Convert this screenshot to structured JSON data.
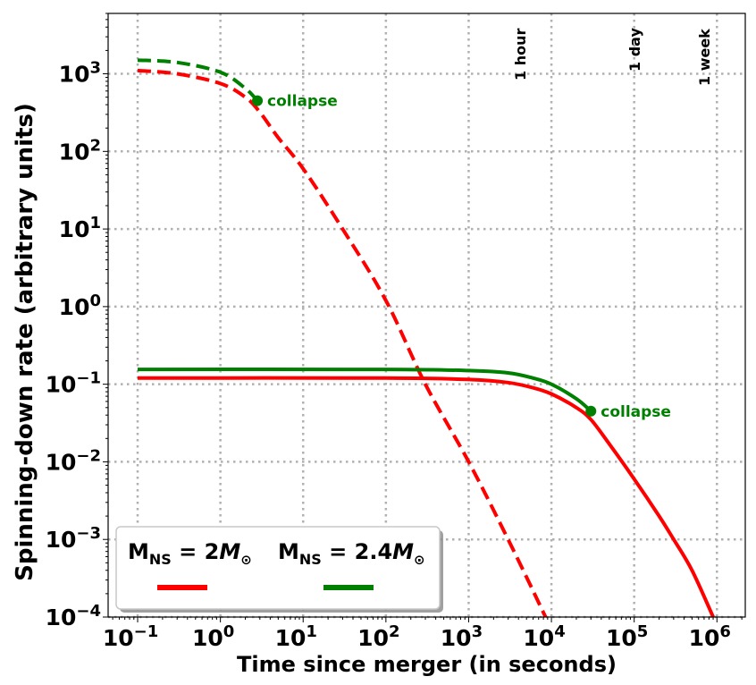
{
  "chart_data": {
    "type": "line",
    "xlabel": "Time since merger (in seconds)",
    "ylabel": "Spinning-down rate (arbitrary units)",
    "xscale": "log",
    "yscale": "log",
    "xlim": [
      0.044,
      2200000
    ],
    "ylim": [
      0.0001,
      6000
    ],
    "grid": true,
    "x_ticks": [
      {
        "value": 0.1,
        "base": "10",
        "exp": "−1"
      },
      {
        "value": 1,
        "base": "10",
        "exp": "0"
      },
      {
        "value": 10,
        "base": "10",
        "exp": "1"
      },
      {
        "value": 100,
        "base": "10",
        "exp": "2"
      },
      {
        "value": 1000,
        "base": "10",
        "exp": "3"
      },
      {
        "value": 10000,
        "base": "10",
        "exp": "4"
      },
      {
        "value": 100000,
        "base": "10",
        "exp": "5"
      },
      {
        "value": 1000000,
        "base": "10",
        "exp": "6"
      }
    ],
    "y_ticks": [
      {
        "value": 0.0001,
        "base": "10",
        "exp": "−4"
      },
      {
        "value": 0.001,
        "base": "10",
        "exp": "−3"
      },
      {
        "value": 0.01,
        "base": "10",
        "exp": "−2"
      },
      {
        "value": 0.1,
        "base": "10",
        "exp": "−1"
      },
      {
        "value": 1,
        "base": "10",
        "exp": "0"
      },
      {
        "value": 10,
        "base": "10",
        "exp": "1"
      },
      {
        "value": 100,
        "base": "10",
        "exp": "2"
      },
      {
        "value": 1000,
        "base": "10",
        "exp": "3"
      }
    ],
    "time_markers": [
      {
        "x": 3600,
        "label": "1 hour"
      },
      {
        "x": 86400,
        "label": "1 day"
      },
      {
        "x": 604800,
        "label": "1 week"
      }
    ],
    "series": [
      {
        "color": "#ff0000",
        "dash": true,
        "points": [
          [
            0.1,
            1100
          ],
          [
            0.3,
            1000
          ],
          [
            1,
            750
          ],
          [
            2,
            500
          ],
          [
            3,
            320
          ],
          [
            5,
            150
          ],
          [
            10,
            60
          ],
          [
            30,
            10
          ],
          [
            100,
            1.2
          ],
          [
            300,
            0.1
          ],
          [
            1000,
            0.01
          ],
          [
            3000,
            0.001
          ],
          [
            8500,
            0.0001
          ]
        ]
      },
      {
        "color": "#008000",
        "dash": true,
        "collapse": true,
        "points": [
          [
            0.1,
            1500
          ],
          [
            0.3,
            1400
          ],
          [
            1,
            1050
          ],
          [
            2,
            650
          ],
          [
            2.8,
            450
          ]
        ]
      },
      {
        "color": "#ff0000",
        "dash": false,
        "points": [
          [
            0.1,
            0.12
          ],
          [
            100,
            0.12
          ],
          [
            1000,
            0.115
          ],
          [
            3000,
            0.105
          ],
          [
            6000,
            0.09
          ],
          [
            10000,
            0.075
          ],
          [
            20000,
            0.05
          ],
          [
            30000,
            0.035
          ],
          [
            50000,
            0.017
          ],
          [
            100000,
            0.006
          ],
          [
            200000,
            0.002
          ],
          [
            300000,
            0.001
          ],
          [
            500000,
            0.0004
          ],
          [
            900000,
            0.0001
          ]
        ]
      },
      {
        "color": "#008000",
        "dash": false,
        "collapse": true,
        "points": [
          [
            0.1,
            0.155
          ],
          [
            100,
            0.155
          ],
          [
            1000,
            0.15
          ],
          [
            3000,
            0.14
          ],
          [
            6000,
            0.12
          ],
          [
            10000,
            0.1
          ],
          [
            20000,
            0.065
          ],
          [
            30000,
            0.045
          ]
        ]
      }
    ],
    "collapse_points": [
      {
        "x": 2.8,
        "y": 450,
        "label": "collapse",
        "color": "#008000"
      },
      {
        "x": 30000,
        "y": 0.045,
        "label": "collapse",
        "color": "#008000"
      }
    ],
    "legend": {
      "placement": "lower-left",
      "entries": [
        {
          "name_main": "M",
          "name_sub": "NS",
          "eq": " = 2",
          "sym": "M",
          "sym_sub": "⊙",
          "color": "#ff0000"
        },
        {
          "name_main": "M",
          "name_sub": "NS",
          "eq": " = 2.4",
          "sym": "M",
          "sym_sub": "⊙",
          "color": "#008000"
        }
      ]
    }
  }
}
